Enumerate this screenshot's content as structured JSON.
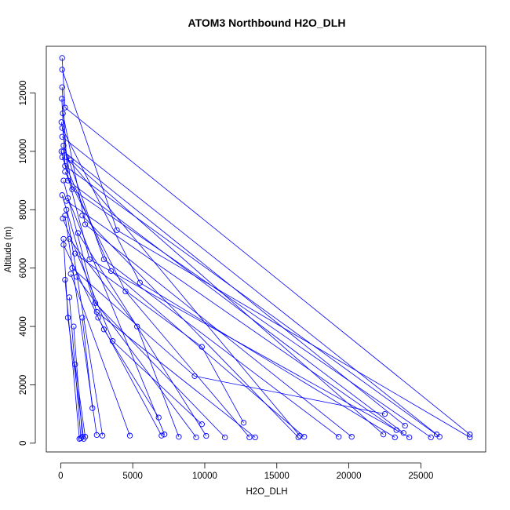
{
  "chart_data": {
    "type": "line",
    "title": "ATOM3 Northbound H2O_DLH",
    "xlabel": "H2O_DLH",
    "ylabel": "Altitude (m)",
    "xlim": [
      -1000,
      29500
    ],
    "ylim": [
      -300,
      13600
    ],
    "xticks": [
      0,
      5000,
      10000,
      15000,
      20000,
      25000
    ],
    "yticks": [
      0,
      2000,
      4000,
      6000,
      8000,
      10000,
      12000
    ],
    "color": "#0000ff",
    "marker": "open-circle",
    "series": [
      {
        "points": [
          [
            28400,
            300
          ],
          [
            300,
            11500
          ],
          [
            100,
            13200
          ]
        ]
      },
      {
        "points": [
          [
            28400,
            200
          ],
          [
            3900,
            7300
          ],
          [
            100,
            12800
          ]
        ]
      },
      {
        "points": [
          [
            26300,
            220
          ],
          [
            300,
            9500
          ],
          [
            80,
            11800
          ]
        ]
      },
      {
        "points": [
          [
            26100,
            300
          ],
          [
            100,
            10500
          ]
        ]
      },
      {
        "points": [
          [
            25700,
            200
          ],
          [
            800,
            8700
          ],
          [
            50,
            11000
          ]
        ]
      },
      {
        "points": [
          [
            24200,
            200
          ],
          [
            2000,
            6300
          ],
          [
            50,
            10000
          ]
        ]
      },
      {
        "points": [
          [
            23900,
            600
          ],
          [
            200,
            10000
          ]
        ]
      },
      {
        "points": [
          [
            23800,
            350
          ],
          [
            500,
            9000
          ],
          [
            100,
            12200
          ]
        ]
      },
      {
        "points": [
          [
            23300,
            450
          ],
          [
            400,
            8300
          ]
        ]
      },
      {
        "points": [
          [
            23200,
            200
          ],
          [
            5500,
            5500
          ],
          [
            100,
            10800
          ]
        ]
      },
      {
        "points": [
          [
            22500,
            1000
          ],
          [
            9300,
            2300
          ],
          [
            800,
            6000
          ]
        ]
      },
      {
        "points": [
          [
            22400,
            300
          ],
          [
            700,
            9700
          ]
        ]
      },
      {
        "points": [
          [
            20200,
            220
          ],
          [
            1700,
            7500
          ],
          [
            150,
            11300
          ]
        ]
      },
      {
        "points": [
          [
            19300,
            220
          ],
          [
            3000,
            6300
          ],
          [
            200,
            10200
          ]
        ]
      },
      {
        "points": [
          [
            16900,
            220
          ],
          [
            3500,
            5900
          ],
          [
            100,
            9800
          ]
        ]
      },
      {
        "points": [
          [
            16600,
            250
          ],
          [
            400,
            9800
          ]
        ]
      },
      {
        "points": [
          [
            16500,
            200
          ],
          [
            1500,
            7800
          ]
        ]
      },
      {
        "points": [
          [
            13500,
            200
          ],
          [
            2500,
            4500
          ],
          [
            100,
            8500
          ]
        ]
      },
      {
        "points": [
          [
            13100,
            200
          ],
          [
            4500,
            5200
          ],
          [
            300,
            9300
          ]
        ]
      },
      {
        "points": [
          [
            12700,
            700
          ],
          [
            9800,
            3300
          ],
          [
            1000,
            6500
          ]
        ]
      },
      {
        "points": [
          [
            11400,
            200
          ],
          [
            2400,
            4800
          ],
          [
            200,
            9000
          ]
        ]
      },
      {
        "points": [
          [
            10100,
            250
          ],
          [
            1200,
            7200
          ]
        ]
      },
      {
        "points": [
          [
            9800,
            650
          ],
          [
            3600,
            3500
          ],
          [
            150,
            7700
          ]
        ]
      },
      {
        "points": [
          [
            9400,
            200
          ],
          [
            1100,
            5700
          ]
        ]
      },
      {
        "points": [
          [
            8200,
            220
          ],
          [
            5300,
            4000
          ],
          [
            600,
            7000
          ]
        ]
      },
      {
        "points": [
          [
            7200,
            300
          ],
          [
            500,
            8400
          ]
        ]
      },
      {
        "points": [
          [
            7000,
            260
          ],
          [
            2600,
            4300
          ]
        ]
      },
      {
        "points": [
          [
            6800,
            880
          ],
          [
            3000,
            3900
          ],
          [
            200,
            6800
          ]
        ]
      },
      {
        "points": [
          [
            4800,
            260
          ],
          [
            700,
            5800
          ]
        ]
      },
      {
        "points": [
          [
            2900,
            260
          ],
          [
            400,
            8000
          ]
        ]
      },
      {
        "points": [
          [
            2500,
            280
          ],
          [
            300,
            7800
          ]
        ]
      },
      {
        "points": [
          [
            2200,
            1200
          ],
          [
            1500,
            4300
          ]
        ]
      },
      {
        "points": [
          [
            1700,
            220
          ],
          [
            1000,
            2700
          ]
        ]
      },
      {
        "points": [
          [
            1600,
            150
          ],
          [
            500,
            4300
          ],
          [
            200,
            7000
          ]
        ]
      },
      {
        "points": [
          [
            1500,
            220
          ],
          [
            900,
            4000
          ]
        ]
      },
      {
        "points": [
          [
            1400,
            170
          ],
          [
            600,
            5000
          ]
        ]
      },
      {
        "points": [
          [
            1300,
            150
          ],
          [
            300,
            5600
          ]
        ]
      }
    ]
  }
}
